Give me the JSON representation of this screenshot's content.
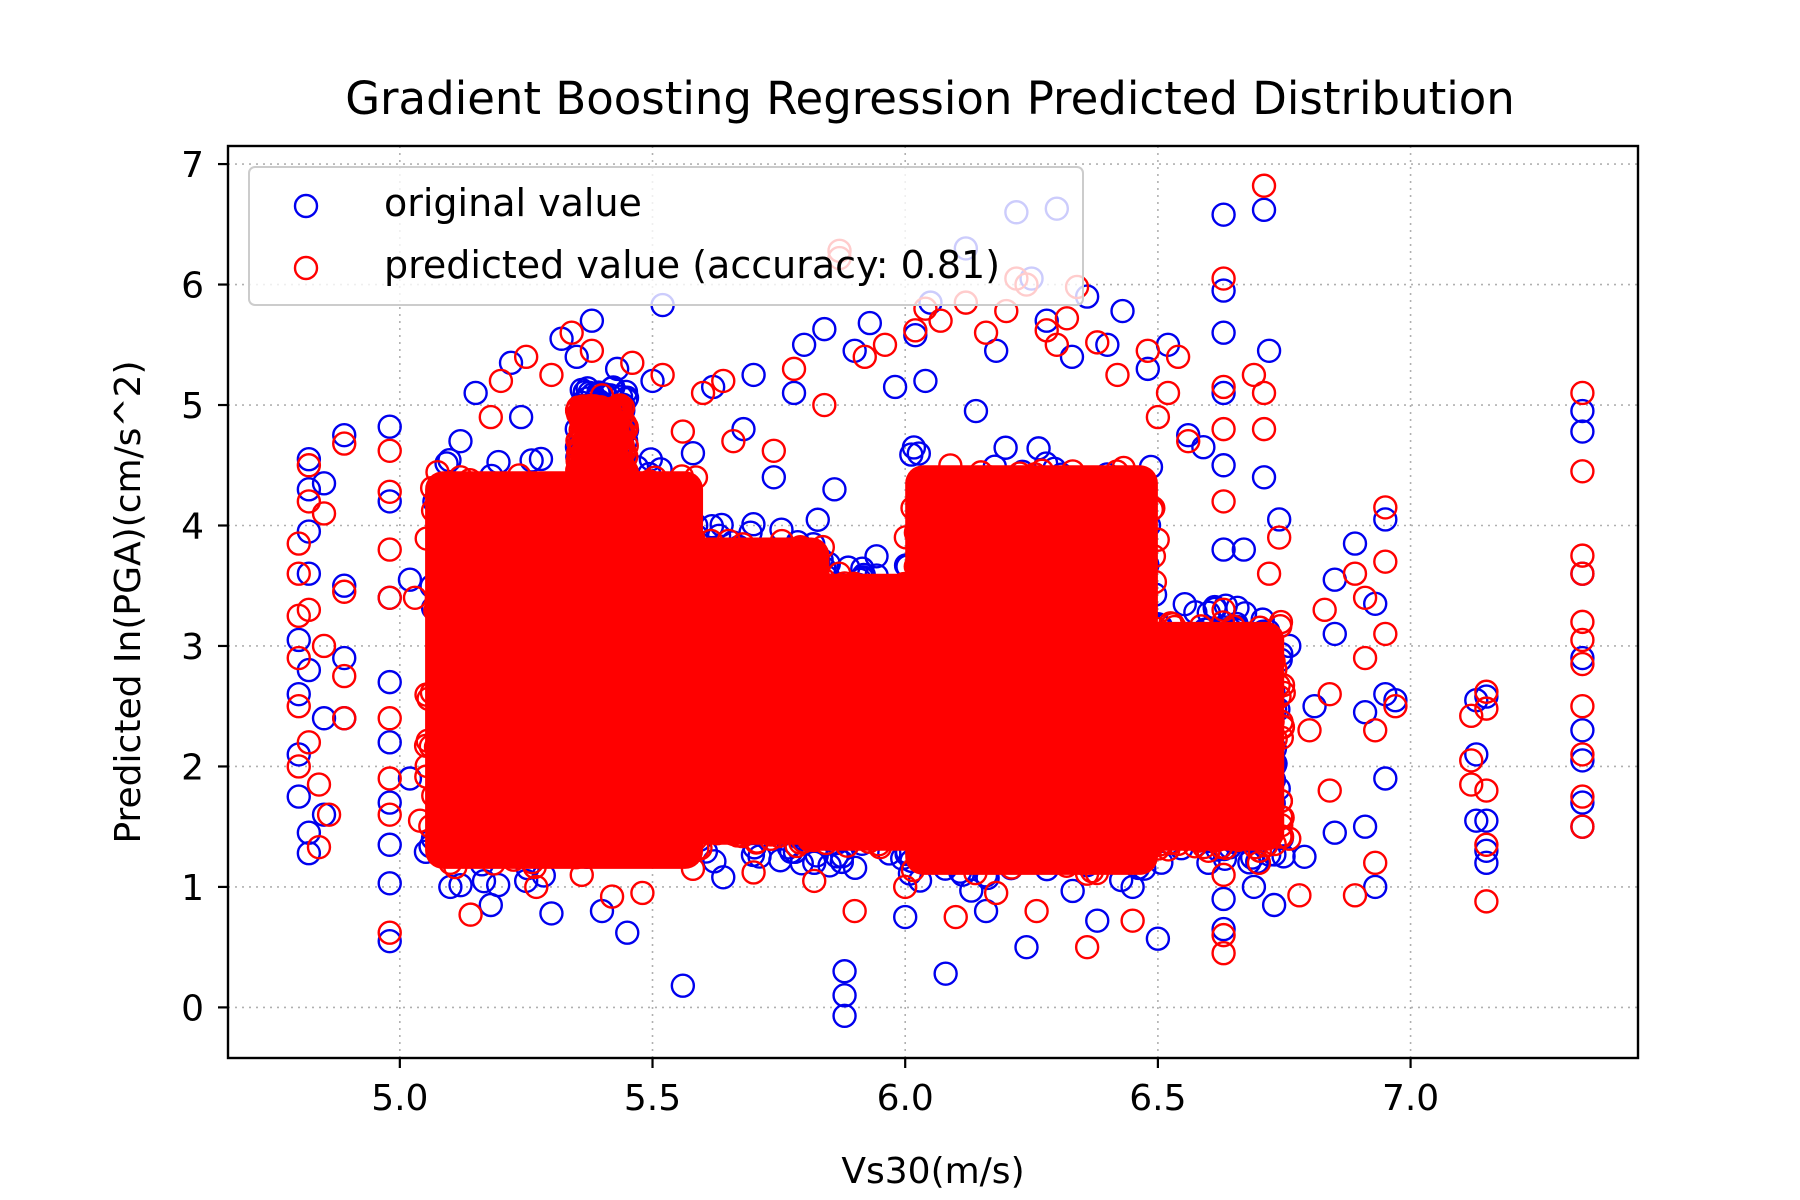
{
  "chart_data": {
    "type": "scatter",
    "title": "Gradient Boosting Regression Predicted Distribution",
    "xlabel": "Vs30(m/s)",
    "ylabel": "Predicted In(PGA)(cm/s^2)",
    "xlim": [
      4.66,
      7.45
    ],
    "ylim": [
      -0.42,
      7.15
    ],
    "xticks": [
      5.0,
      5.5,
      6.0,
      6.5,
      7.0
    ],
    "xtick_labels": [
      "5.0",
      "5.5",
      "6.0",
      "6.5",
      "7.0"
    ],
    "yticks": [
      0,
      1,
      2,
      3,
      4,
      5,
      6,
      7
    ],
    "ytick_labels": [
      "0",
      "1",
      "2",
      "3",
      "4",
      "5",
      "6",
      "7"
    ],
    "grid": true,
    "legend_position": "top-left",
    "marker": "open-circle",
    "series": [
      {
        "name": "original value",
        "color": "#0000ee",
        "points": [
          [
            4.8,
            1.75
          ],
          [
            4.8,
            2.1
          ],
          [
            4.8,
            2.6
          ],
          [
            4.8,
            3.05
          ],
          [
            4.82,
            4.55
          ],
          [
            4.82,
            4.3
          ],
          [
            4.82,
            3.95
          ],
          [
            4.82,
            3.6
          ],
          [
            4.82,
            2.8
          ],
          [
            4.82,
            1.45
          ],
          [
            4.82,
            1.28
          ],
          [
            4.85,
            4.35
          ],
          [
            4.85,
            2.4
          ],
          [
            4.85,
            1.6
          ],
          [
            4.89,
            4.75
          ],
          [
            4.89,
            3.5
          ],
          [
            4.89,
            2.9
          ],
          [
            4.89,
            2.4
          ],
          [
            4.98,
            4.82
          ],
          [
            4.98,
            4.2
          ],
          [
            4.98,
            3.4
          ],
          [
            4.98,
            2.7
          ],
          [
            4.98,
            2.2
          ],
          [
            4.98,
            1.7
          ],
          [
            4.98,
            1.35
          ],
          [
            4.98,
            1.03
          ],
          [
            4.98,
            0.55
          ],
          [
            5.02,
            3.55
          ],
          [
            5.02,
            1.9
          ],
          [
            5.08,
            2.7
          ],
          [
            5.1,
            1.0
          ],
          [
            5.12,
            4.7
          ],
          [
            5.15,
            5.1
          ],
          [
            5.18,
            0.85
          ],
          [
            5.22,
            5.35
          ],
          [
            5.24,
            4.9
          ],
          [
            5.25,
            1.05
          ],
          [
            5.3,
            0.78
          ],
          [
            5.32,
            5.55
          ],
          [
            5.35,
            5.4
          ],
          [
            5.37,
            1.25
          ],
          [
            5.38,
            5.7
          ],
          [
            5.4,
            0.8
          ],
          [
            5.43,
            5.3
          ],
          [
            5.45,
            0.62
          ],
          [
            5.5,
            5.2
          ],
          [
            5.52,
            5.83
          ],
          [
            5.56,
            0.18
          ],
          [
            5.58,
            4.6
          ],
          [
            5.62,
            5.15
          ],
          [
            5.64,
            1.08
          ],
          [
            5.68,
            4.8
          ],
          [
            5.7,
            5.25
          ],
          [
            5.74,
            4.4
          ],
          [
            5.78,
            5.1
          ],
          [
            5.8,
            5.5
          ],
          [
            5.82,
            1.2
          ],
          [
            5.84,
            5.63
          ],
          [
            5.86,
            4.3
          ],
          [
            5.88,
            0.3
          ],
          [
            5.88,
            0.1
          ],
          [
            5.88,
            -0.07
          ],
          [
            5.9,
            5.45
          ],
          [
            5.93,
            5.68
          ],
          [
            5.98,
            5.15
          ],
          [
            6.0,
            0.75
          ],
          [
            6.02,
            5.58
          ],
          [
            6.04,
            5.2
          ],
          [
            6.05,
            5.85
          ],
          [
            6.08,
            0.28
          ],
          [
            6.12,
            6.3
          ],
          [
            6.14,
            4.95
          ],
          [
            6.16,
            0.8
          ],
          [
            6.18,
            5.45
          ],
          [
            6.22,
            6.6
          ],
          [
            6.24,
            0.5
          ],
          [
            6.25,
            6.05
          ],
          [
            6.28,
            5.7
          ],
          [
            6.3,
            6.63
          ],
          [
            6.33,
            5.4
          ],
          [
            6.36,
            5.9
          ],
          [
            6.38,
            0.72
          ],
          [
            6.4,
            5.5
          ],
          [
            6.43,
            5.78
          ],
          [
            6.45,
            1.0
          ],
          [
            6.48,
            5.3
          ],
          [
            6.5,
            0.57
          ],
          [
            6.52,
            5.5
          ],
          [
            6.56,
            4.75
          ],
          [
            6.59,
            4.65
          ],
          [
            6.6,
            1.2
          ],
          [
            6.63,
            6.58
          ],
          [
            6.63,
            5.95
          ],
          [
            6.63,
            5.6
          ],
          [
            6.63,
            5.1
          ],
          [
            6.63,
            4.5
          ],
          [
            6.63,
            3.8
          ],
          [
            6.63,
            2.5
          ],
          [
            6.63,
            1.5
          ],
          [
            6.63,
            0.9
          ],
          [
            6.63,
            0.65
          ],
          [
            6.67,
            3.8
          ],
          [
            6.69,
            1.0
          ],
          [
            6.71,
            6.62
          ],
          [
            6.71,
            4.4
          ],
          [
            6.72,
            5.45
          ],
          [
            6.73,
            0.85
          ],
          [
            6.74,
            4.05
          ],
          [
            6.76,
            3.0
          ],
          [
            6.79,
            1.25
          ],
          [
            6.81,
            2.5
          ],
          [
            6.85,
            3.55
          ],
          [
            6.85,
            3.1
          ],
          [
            6.85,
            1.45
          ],
          [
            6.89,
            3.85
          ],
          [
            6.91,
            2.45
          ],
          [
            6.91,
            1.5
          ],
          [
            6.93,
            3.35
          ],
          [
            6.93,
            1.0
          ],
          [
            6.95,
            4.05
          ],
          [
            6.95,
            2.6
          ],
          [
            6.95,
            1.9
          ],
          [
            6.97,
            2.55
          ],
          [
            7.13,
            2.55
          ],
          [
            7.13,
            2.1
          ],
          [
            7.13,
            1.55
          ],
          [
            7.15,
            2.58
          ],
          [
            7.15,
            1.55
          ],
          [
            7.15,
            1.3
          ],
          [
            7.15,
            1.2
          ],
          [
            7.34,
            4.95
          ],
          [
            7.34,
            4.78
          ],
          [
            7.34,
            3.6
          ],
          [
            7.34,
            2.9
          ],
          [
            7.34,
            2.3
          ],
          [
            7.34,
            2.05
          ],
          [
            7.34,
            1.7
          ],
          [
            7.34,
            1.5
          ]
        ]
      },
      {
        "name": "predicted value (accuracy: 0.81)",
        "color": "#ff0000",
        "points": [
          [
            4.8,
            3.85
          ],
          [
            4.8,
            3.6
          ],
          [
            4.8,
            3.25
          ],
          [
            4.8,
            2.9
          ],
          [
            4.8,
            2.5
          ],
          [
            4.8,
            2.0
          ],
          [
            4.82,
            4.5
          ],
          [
            4.82,
            4.2
          ],
          [
            4.82,
            3.3
          ],
          [
            4.82,
            2.2
          ],
          [
            4.84,
            1.85
          ],
          [
            4.84,
            1.33
          ],
          [
            4.85,
            4.1
          ],
          [
            4.85,
            3.0
          ],
          [
            4.86,
            1.6
          ],
          [
            4.89,
            4.68
          ],
          [
            4.89,
            3.45
          ],
          [
            4.89,
            2.75
          ],
          [
            4.89,
            2.4
          ],
          [
            4.98,
            4.62
          ],
          [
            4.98,
            4.28
          ],
          [
            4.98,
            3.8
          ],
          [
            4.98,
            3.4
          ],
          [
            4.98,
            2.4
          ],
          [
            4.98,
            1.9
          ],
          [
            4.98,
            1.6
          ],
          [
            4.98,
            0.62
          ],
          [
            5.03,
            3.4
          ],
          [
            5.04,
            1.55
          ],
          [
            5.08,
            3.9
          ],
          [
            5.1,
            1.2
          ],
          [
            5.12,
            4.4
          ],
          [
            5.14,
            0.77
          ],
          [
            5.18,
            4.9
          ],
          [
            5.2,
            5.2
          ],
          [
            5.25,
            5.4
          ],
          [
            5.27,
            1.0
          ],
          [
            5.3,
            5.25
          ],
          [
            5.34,
            5.6
          ],
          [
            5.36,
            1.1
          ],
          [
            5.38,
            5.45
          ],
          [
            5.4,
            5.08
          ],
          [
            5.42,
            0.92
          ],
          [
            5.46,
            5.35
          ],
          [
            5.48,
            0.95
          ],
          [
            5.52,
            5.25
          ],
          [
            5.56,
            4.78
          ],
          [
            5.58,
            1.15
          ],
          [
            5.6,
            5.1
          ],
          [
            5.64,
            5.2
          ],
          [
            5.66,
            4.7
          ],
          [
            5.7,
            1.12
          ],
          [
            5.74,
            4.62
          ],
          [
            5.78,
            5.3
          ],
          [
            5.82,
            1.05
          ],
          [
            5.84,
            5.0
          ],
          [
            5.87,
            6.28
          ],
          [
            5.87,
            6.22
          ],
          [
            5.9,
            0.8
          ],
          [
            5.92,
            5.4
          ],
          [
            5.96,
            5.5
          ],
          [
            6.0,
            1.0
          ],
          [
            6.02,
            5.62
          ],
          [
            6.04,
            5.8
          ],
          [
            6.07,
            5.7
          ],
          [
            6.1,
            0.75
          ],
          [
            6.12,
            5.85
          ],
          [
            6.16,
            5.6
          ],
          [
            6.18,
            0.95
          ],
          [
            6.2,
            5.78
          ],
          [
            6.22,
            6.05
          ],
          [
            6.24,
            6.0
          ],
          [
            6.26,
            0.8
          ],
          [
            6.28,
            5.62
          ],
          [
            6.3,
            5.5
          ],
          [
            6.32,
            5.72
          ],
          [
            6.34,
            5.98
          ],
          [
            6.36,
            0.5
          ],
          [
            6.38,
            5.52
          ],
          [
            6.42,
            5.25
          ],
          [
            6.45,
            0.72
          ],
          [
            6.48,
            5.45
          ],
          [
            6.5,
            4.9
          ],
          [
            6.52,
            5.1
          ],
          [
            6.54,
            5.4
          ],
          [
            6.56,
            4.7
          ],
          [
            6.6,
            1.3
          ],
          [
            6.63,
            6.05
          ],
          [
            6.63,
            5.15
          ],
          [
            6.63,
            4.8
          ],
          [
            6.63,
            4.2
          ],
          [
            6.63,
            3.3
          ],
          [
            6.63,
            2.0
          ],
          [
            6.63,
            1.1
          ],
          [
            6.63,
            0.6
          ],
          [
            6.63,
            0.45
          ],
          [
            6.69,
            5.25
          ],
          [
            6.7,
            1.2
          ],
          [
            6.71,
            6.82
          ],
          [
            6.71,
            5.1
          ],
          [
            6.71,
            4.8
          ],
          [
            6.72,
            3.6
          ],
          [
            6.74,
            3.9
          ],
          [
            6.76,
            1.4
          ],
          [
            6.78,
            0.93
          ],
          [
            6.8,
            2.3
          ],
          [
            6.83,
            3.3
          ],
          [
            6.84,
            2.6
          ],
          [
            6.84,
            1.8
          ],
          [
            6.89,
            3.6
          ],
          [
            6.89,
            0.93
          ],
          [
            6.91,
            3.4
          ],
          [
            6.91,
            2.9
          ],
          [
            6.93,
            2.3
          ],
          [
            6.93,
            1.2
          ],
          [
            6.95,
            4.15
          ],
          [
            6.95,
            3.7
          ],
          [
            6.95,
            3.1
          ],
          [
            6.97,
            2.5
          ],
          [
            7.12,
            2.42
          ],
          [
            7.12,
            2.05
          ],
          [
            7.12,
            1.85
          ],
          [
            7.15,
            2.62
          ],
          [
            7.15,
            2.48
          ],
          [
            7.15,
            1.8
          ],
          [
            7.15,
            1.35
          ],
          [
            7.15,
            0.88
          ],
          [
            7.34,
            5.1
          ],
          [
            7.34,
            4.45
          ],
          [
            7.34,
            3.75
          ],
          [
            7.34,
            3.6
          ],
          [
            7.34,
            3.2
          ],
          [
            7.34,
            3.05
          ],
          [
            7.34,
            2.85
          ],
          [
            7.34,
            2.5
          ],
          [
            7.34,
            2.1
          ],
          [
            7.34,
            1.75
          ],
          [
            7.34,
            1.5
          ]
        ],
        "dense_regions": [
          {
            "x": [
              5.05,
              5.6
            ],
            "y": [
              1.15,
              4.45
            ]
          },
          {
            "x": [
              5.35,
              5.45
            ],
            "y": [
              4.3,
              5.0
            ]
          },
          {
            "x": [
              5.55,
              5.85
            ],
            "y": [
              1.35,
              3.9
            ]
          },
          {
            "x": [
              5.78,
              6.08
            ],
            "y": [
              1.3,
              3.6
            ]
          },
          {
            "x": [
              6.0,
              6.5
            ],
            "y": [
              1.1,
              4.5
            ]
          },
          {
            "x": [
              6.45,
              6.75
            ],
            "y": [
              1.3,
              3.2
            ]
          }
        ]
      }
    ]
  }
}
